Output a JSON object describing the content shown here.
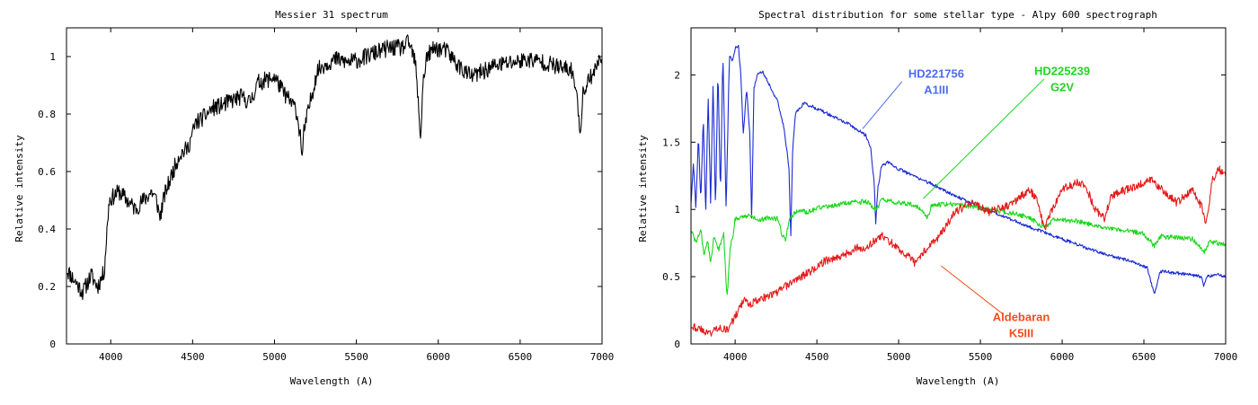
{
  "chart_data": [
    {
      "type": "line",
      "title": "Messier 31 spectrum",
      "xlabel": "Wavelength (A)",
      "ylabel": "Relative intensity",
      "xlim": [
        3730,
        7000
      ],
      "ylim": [
        0,
        1.1
      ],
      "xticks": [
        4000,
        4500,
        5000,
        5500,
        6000,
        6500,
        7000
      ],
      "yticks": [
        0,
        0.2,
        0.4,
        0.6,
        0.8,
        1
      ],
      "ytick_labels": [
        "0",
        "0.2",
        "0.4",
        "0.6",
        "0.8",
        "1"
      ],
      "grid": false,
      "series": [
        {
          "color": "#000000",
          "noise": 0.03,
          "seed": 11,
          "x": [
            3730,
            3780,
            3830,
            3880,
            3920,
            3960,
            3990,
            4050,
            4100,
            4150,
            4200,
            4250,
            4280,
            4300,
            4330,
            4380,
            4420,
            4470,
            4520,
            4570,
            4620,
            4680,
            4750,
            4800,
            4850,
            4900,
            4960,
            5000,
            5050,
            5100,
            5130,
            5160,
            5170,
            5180,
            5210,
            5260,
            5300,
            5330,
            5380,
            5450,
            5520,
            5600,
            5700,
            5780,
            5820,
            5860,
            5880,
            5893,
            5905,
            5930,
            5980,
            6050,
            6120,
            6200,
            6280,
            6350,
            6450,
            6550,
            6650,
            6750,
            6820,
            6855,
            6868,
            6880,
            6900,
            6950,
            7000
          ],
          "y": [
            0.26,
            0.22,
            0.18,
            0.24,
            0.2,
            0.25,
            0.5,
            0.53,
            0.5,
            0.47,
            0.5,
            0.53,
            0.5,
            0.44,
            0.52,
            0.6,
            0.66,
            0.68,
            0.77,
            0.79,
            0.82,
            0.83,
            0.85,
            0.86,
            0.84,
            0.91,
            0.92,
            0.93,
            0.88,
            0.84,
            0.82,
            0.72,
            0.64,
            0.74,
            0.82,
            0.95,
            0.97,
            0.98,
            0.99,
            0.98,
            0.99,
            1.01,
            1.03,
            1.03,
            1.05,
            0.98,
            0.82,
            0.71,
            0.9,
            1.0,
            1.03,
            1.02,
            0.97,
            0.93,
            0.95,
            0.97,
            0.98,
            0.99,
            0.98,
            0.96,
            0.95,
            0.82,
            0.72,
            0.86,
            0.9,
            0.95,
            1.0
          ]
        }
      ]
    },
    {
      "type": "line",
      "title": "Spectral distribution for some stellar type - Alpy 600 spectrograph",
      "xlabel": "Wavelength (A)",
      "ylabel": "Relative intensity",
      "xlim": [
        3730,
        7000
      ],
      "ylim": [
        0,
        2.35
      ],
      "xticks": [
        4000,
        4500,
        5000,
        5500,
        6000,
        6500,
        7000
      ],
      "yticks": [
        0,
        0.5,
        1,
        1.5,
        2
      ],
      "ytick_labels": [
        "0",
        "0.5",
        "1",
        "1.5",
        "2"
      ],
      "grid": false,
      "series": [
        {
          "name": "HD221756 A1III",
          "color": "#1c2bd4",
          "noise": 0.012,
          "seed": 21,
          "x": [
            3730,
            3745,
            3760,
            3775,
            3790,
            3805,
            3820,
            3835,
            3850,
            3865,
            3880,
            3895,
            3910,
            3925,
            3945,
            3965,
            3985,
            4000,
            4020,
            4035,
            4050,
            4070,
            4090,
            4101,
            4115,
            4140,
            4170,
            4200,
            4260,
            4300,
            4330,
            4340,
            4352,
            4370,
            4420,
            4500,
            4600,
            4700,
            4800,
            4830,
            4850,
            4860,
            4872,
            4895,
            4930,
            5000,
            5200,
            5400,
            5600,
            5800,
            6000,
            6200,
            6400,
            6520,
            6563,
            6600,
            6750,
            6850,
            6868,
            6885,
            6950,
            7000
          ],
          "y": [
            1.05,
            1.35,
            1.0,
            1.55,
            1.05,
            1.7,
            0.95,
            1.85,
            1.05,
            1.95,
            1.0,
            2.05,
            1.1,
            2.15,
            1.0,
            2.15,
            2.1,
            2.2,
            2.22,
            2.0,
            1.55,
            1.9,
            1.55,
            0.92,
            1.9,
            2.02,
            2.02,
            1.95,
            1.8,
            1.6,
            1.3,
            0.78,
            1.45,
            1.72,
            1.79,
            1.75,
            1.69,
            1.63,
            1.55,
            1.45,
            1.2,
            0.9,
            1.15,
            1.32,
            1.35,
            1.3,
            1.19,
            1.07,
            0.97,
            0.87,
            0.78,
            0.69,
            0.62,
            0.57,
            0.37,
            0.54,
            0.52,
            0.5,
            0.43,
            0.5,
            0.52,
            0.5
          ]
        },
        {
          "name": "HD225239 G2V",
          "color": "#1ed61e",
          "noise": 0.018,
          "seed": 32,
          "x": [
            3730,
            3760,
            3790,
            3810,
            3830,
            3850,
            3870,
            3900,
            3930,
            3950,
            3970,
            3990,
            4000,
            4050,
            4100,
            4150,
            4200,
            4260,
            4290,
            4310,
            4330,
            4380,
            4450,
            4500,
            4600,
            4700,
            4800,
            4861,
            4900,
            5000,
            5100,
            5150,
            5175,
            5200,
            5300,
            5400,
            5500,
            5600,
            5700,
            5800,
            5890,
            5950,
            6100,
            6300,
            6500,
            6563,
            6600,
            6800,
            6868,
            6900,
            7000
          ],
          "y": [
            0.85,
            0.75,
            0.85,
            0.65,
            0.78,
            0.6,
            0.8,
            0.7,
            0.82,
            0.33,
            0.72,
            0.82,
            0.93,
            0.95,
            0.95,
            0.92,
            0.94,
            0.93,
            0.8,
            0.78,
            0.93,
            0.99,
            0.98,
            1.01,
            1.03,
            1.05,
            1.06,
            1.0,
            1.07,
            1.05,
            1.03,
            0.98,
            0.93,
            1.03,
            1.04,
            1.03,
            1.01,
            0.99,
            0.97,
            0.94,
            0.86,
            0.93,
            0.91,
            0.86,
            0.82,
            0.73,
            0.8,
            0.78,
            0.68,
            0.76,
            0.74
          ]
        },
        {
          "name": "Aldebaran K5III",
          "color": "#e41b1b",
          "noise": 0.03,
          "seed": 43,
          "x": [
            3730,
            3800,
            3850,
            3900,
            3950,
            4000,
            4050,
            4100,
            4150,
            4200,
            4250,
            4300,
            4350,
            4400,
            4450,
            4500,
            4550,
            4600,
            4650,
            4700,
            4750,
            4800,
            4850,
            4900,
            4950,
            5000,
            5050,
            5100,
            5150,
            5200,
            5250,
            5300,
            5350,
            5400,
            5450,
            5500,
            5550,
            5600,
            5650,
            5700,
            5750,
            5800,
            5850,
            5890,
            5930,
            6000,
            6100,
            6150,
            6200,
            6260,
            6300,
            6400,
            6500,
            6550,
            6600,
            6700,
            6800,
            6860,
            6880,
            6920,
            6960,
            7000
          ],
          "y": [
            0.14,
            0.1,
            0.08,
            0.13,
            0.1,
            0.2,
            0.32,
            0.3,
            0.34,
            0.35,
            0.38,
            0.42,
            0.46,
            0.5,
            0.53,
            0.57,
            0.62,
            0.63,
            0.66,
            0.68,
            0.72,
            0.7,
            0.77,
            0.8,
            0.76,
            0.7,
            0.66,
            0.6,
            0.68,
            0.75,
            0.8,
            0.9,
            0.98,
            1.02,
            1.05,
            1.02,
            0.98,
            1.0,
            1.02,
            1.05,
            1.1,
            1.14,
            1.07,
            0.85,
            0.98,
            1.15,
            1.2,
            1.16,
            1.0,
            0.93,
            1.1,
            1.15,
            1.2,
            1.22,
            1.16,
            1.05,
            1.15,
            1.0,
            0.9,
            1.22,
            1.3,
            1.25
          ]
        }
      ]
    }
  ],
  "annotations": [
    {
      "lines": [
        "HD221756",
        "A1III"
      ],
      "color": "#4c6df0",
      "tx": 5230,
      "ty": 1.98,
      "lx1": 5020,
      "ly1": 1.95,
      "lx2": 4780,
      "ly2": 1.6
    },
    {
      "lines": [
        "HD225239",
        "G2V"
      ],
      "color": "#1ed61e",
      "tx": 6000,
      "ty": 2.0,
      "lx1": 5890,
      "ly1": 1.97,
      "lx2": 5150,
      "ly2": 1.08
    },
    {
      "lines": [
        "Aldebaran",
        "K5III"
      ],
      "color": "#f24e1a",
      "tx": 5750,
      "ty": 0.17,
      "lx1": 5640,
      "ly1": 0.22,
      "lx2": 5260,
      "ly2": 0.58
    }
  ]
}
